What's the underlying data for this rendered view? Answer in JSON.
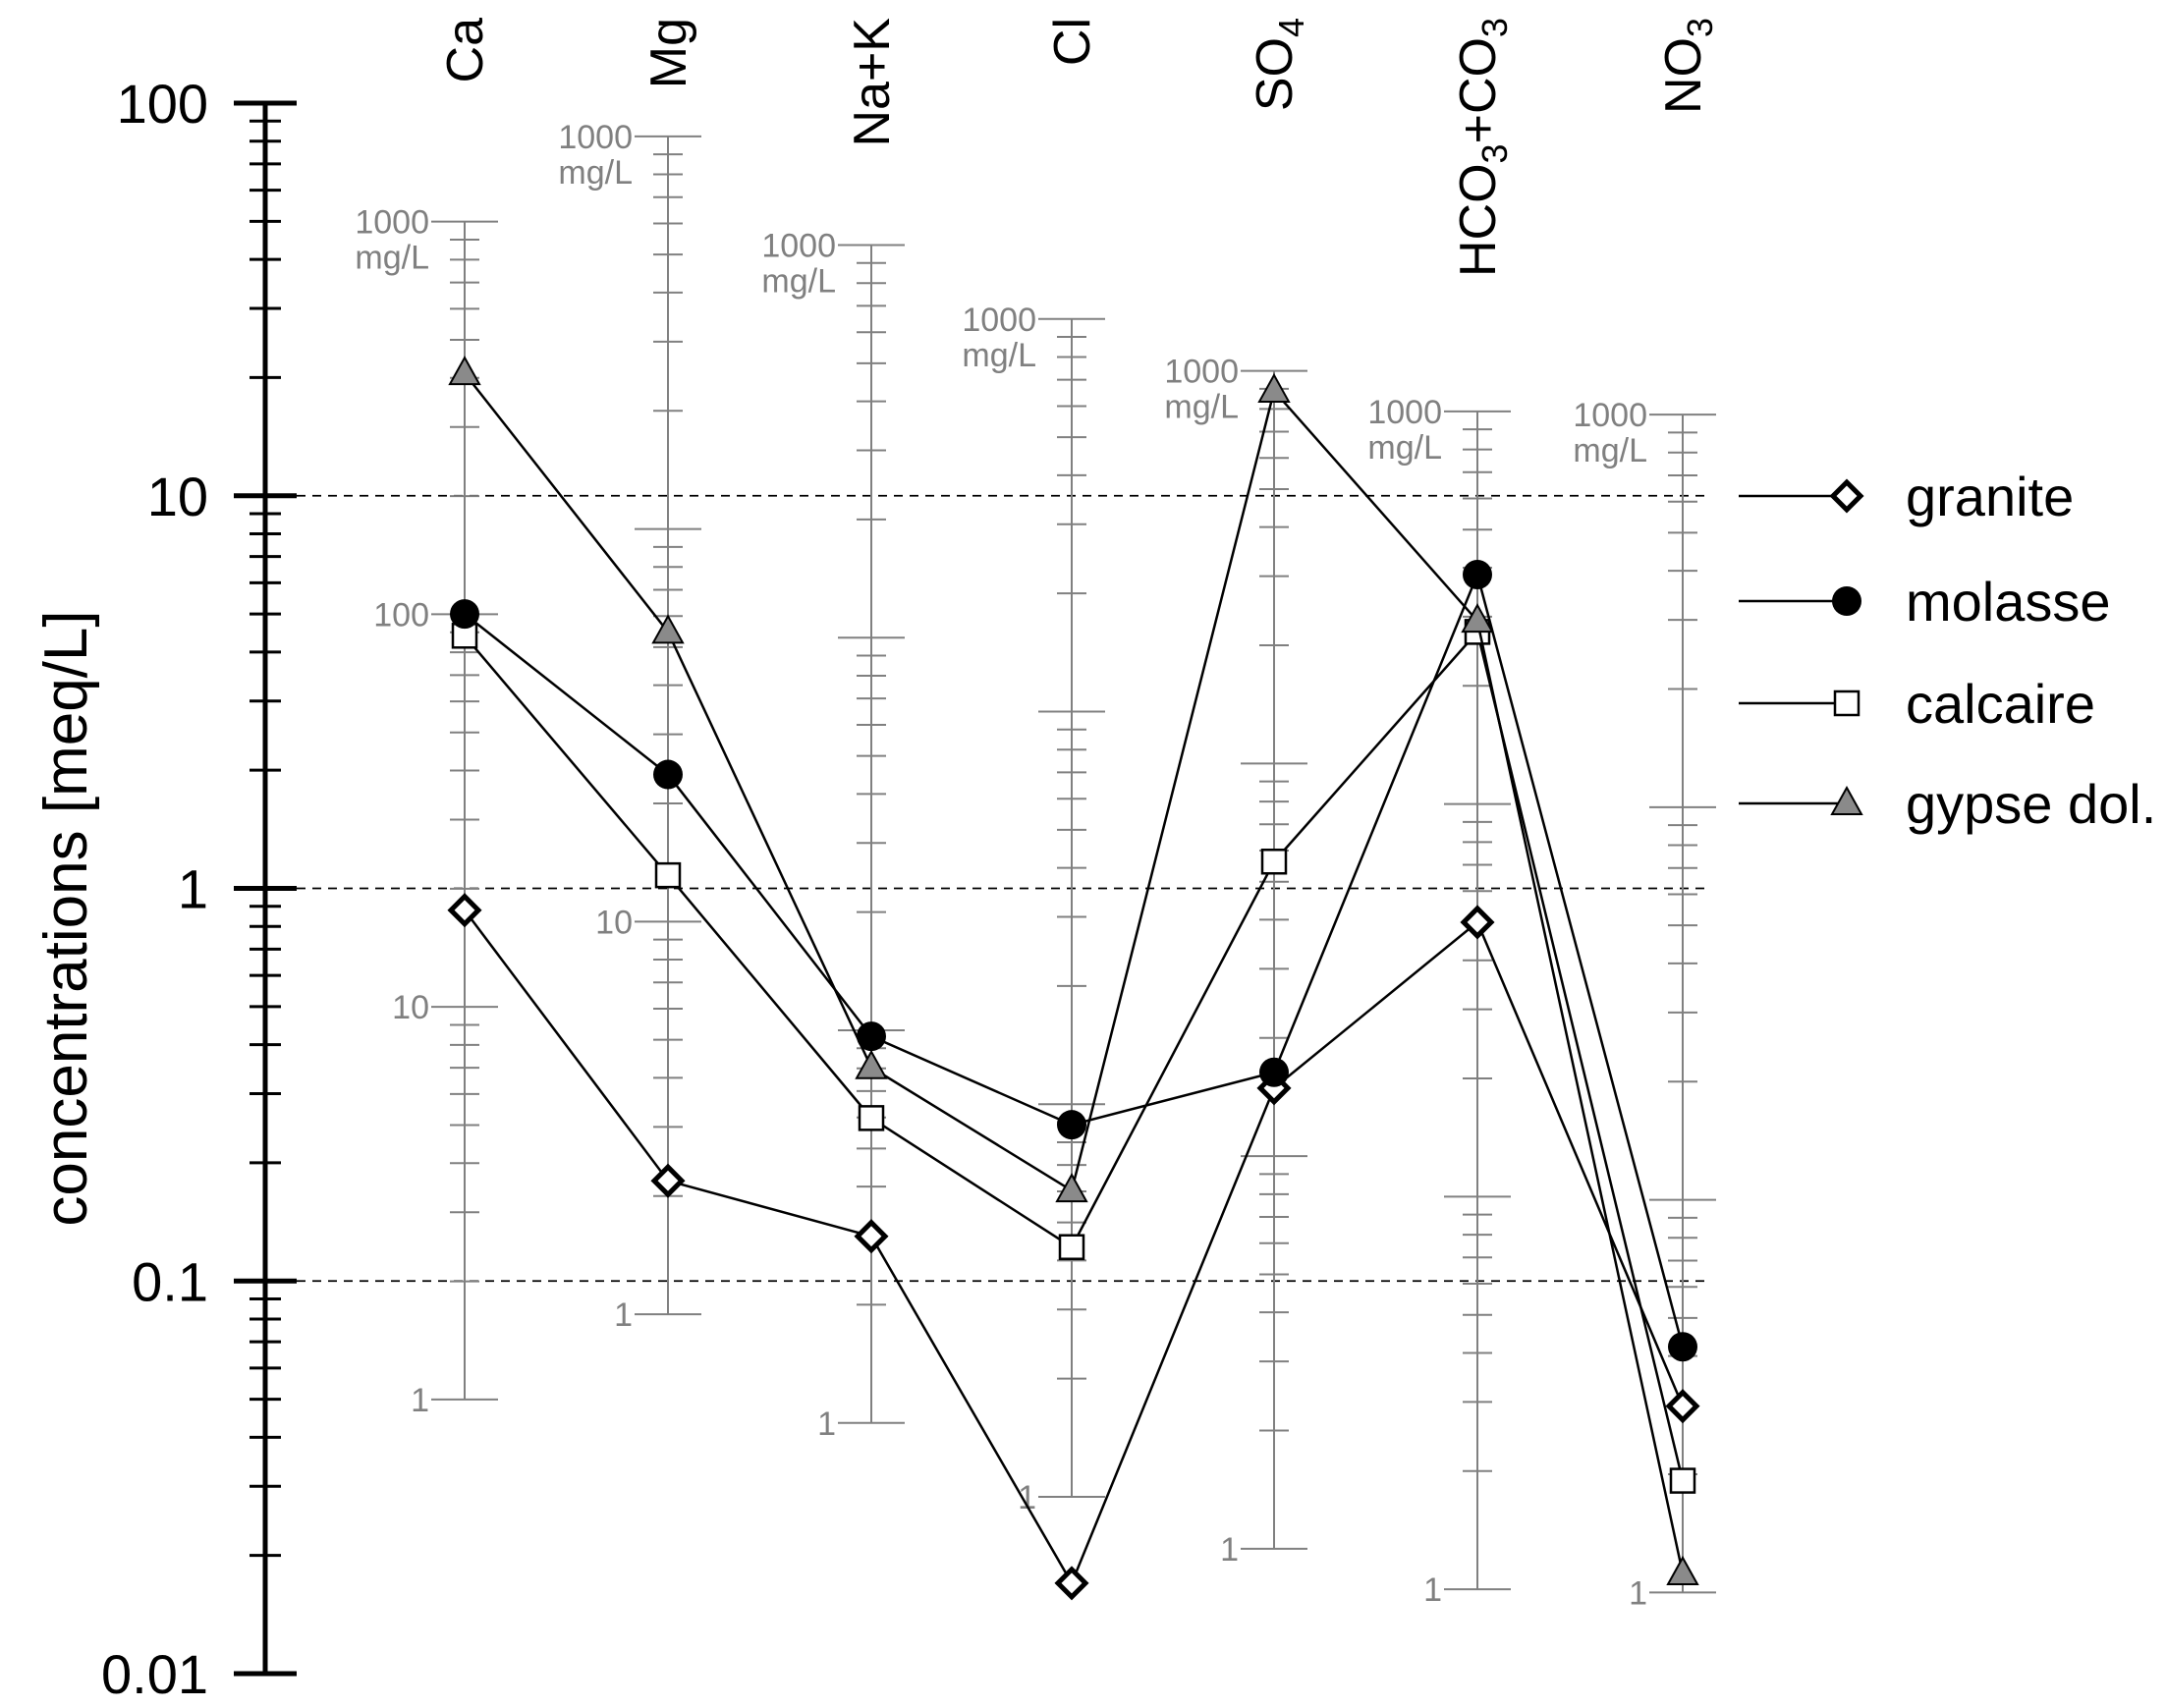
{
  "chart_data": {
    "type": "line",
    "ylabel": "concentrations  [meq/L]",
    "yscale": "log",
    "ylim": [
      0.01,
      100
    ],
    "y_ticks": [
      "100",
      "10",
      "1",
      "0.1",
      "0.01"
    ],
    "gridlines_dashed_at": [
      10,
      1,
      0.1
    ],
    "categories": [
      {
        "main": "Ca",
        "sub": "",
        "tail": ""
      },
      {
        "main": "Mg",
        "sub": "",
        "tail": ""
      },
      {
        "main": "Na+K",
        "sub": "",
        "tail": ""
      },
      {
        "main": "Cl",
        "sub": "",
        "tail": ""
      },
      {
        "main": "SO",
        "sub": "4",
        "tail": ""
      },
      {
        "main": "HCO",
        "sub": "3",
        "tail": "+CO",
        "sub2": "3"
      },
      {
        "main": "NO",
        "sub": "3",
        "tail": ""
      }
    ],
    "mg_axes": [
      {
        "ion": "Ca",
        "meq_per_mgL": 0.0499,
        "labels": [
          "1000",
          "mg/L",
          "100",
          "10",
          "1"
        ]
      },
      {
        "ion": "Mg",
        "meq_per_mgL": 0.0823,
        "labels": [
          "1000",
          "mg/L",
          "10",
          "1"
        ]
      },
      {
        "ion": "Na+K",
        "meq_per_mgL": 0.0435,
        "labels": [
          "1000",
          "mg/L",
          "1"
        ]
      },
      {
        "ion": "Cl",
        "meq_per_mgL": 0.0282,
        "labels": [
          "1000",
          "mg/L",
          "1"
        ]
      },
      {
        "ion": "SO4",
        "meq_per_mgL": 0.0208,
        "labels": [
          "1000",
          "mg/L",
          "1"
        ]
      },
      {
        "ion": "HCO3+CO3",
        "meq_per_mgL": 0.0164,
        "labels": [
          "1000",
          "mg/L",
          "1"
        ]
      },
      {
        "ion": "NO3",
        "meq_per_mgL": 0.0161,
        "labels": [
          "1000",
          "mg/L",
          "1"
        ]
      }
    ],
    "series": [
      {
        "name": "granite",
        "marker": "diamond-open",
        "values": [
          0.88,
          0.18,
          0.13,
          0.017,
          0.31,
          0.82,
          0.048
        ]
      },
      {
        "name": "molasse",
        "marker": "circle-filled",
        "values": [
          5.0,
          1.95,
          0.42,
          0.25,
          0.34,
          6.3,
          0.068
        ]
      },
      {
        "name": "calcaire",
        "marker": "square-open",
        "values": [
          4.4,
          1.08,
          0.26,
          0.122,
          1.17,
          4.5,
          0.031
        ]
      },
      {
        "name": "gypse dol.",
        "marker": "triangle-gray",
        "values": [
          20.5,
          4.5,
          0.35,
          0.17,
          18.5,
          4.8,
          0.018
        ]
      }
    ],
    "legend_position": "right"
  }
}
